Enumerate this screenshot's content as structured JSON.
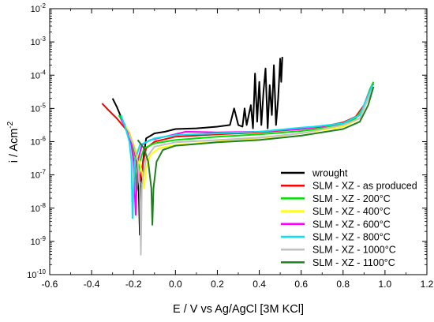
{
  "chart_data": {
    "type": "line",
    "title": "",
    "xlabel": "E / V vs Ag/AgCl [3M KCl]",
    "ylabel_main": "i / Acm",
    "ylabel_sup": "-2",
    "xlim": [
      -0.6,
      1.2
    ],
    "x_ticks": [
      "-0.6",
      "-0.4",
      "-0.2",
      "0.0",
      "0.2",
      "0.4",
      "0.6",
      "0.8",
      "1.0",
      "1.2"
    ],
    "y_scale": "log",
    "y_ticks": [
      {
        "base": "10",
        "exp": "-10"
      },
      {
        "base": "10",
        "exp": "-9"
      },
      {
        "base": "10",
        "exp": "-8"
      },
      {
        "base": "10",
        "exp": "-7"
      },
      {
        "base": "10",
        "exp": "-6"
      },
      {
        "base": "10",
        "exp": "-5"
      },
      {
        "base": "10",
        "exp": "-4"
      },
      {
        "base": "10",
        "exp": "-3"
      },
      {
        "base": "10",
        "exp": "-2"
      }
    ],
    "grid": false,
    "legend_position": "bottom-right",
    "series": [
      {
        "name": "wrought",
        "color": "#000000",
        "ecorr": -0.17,
        "imin_log": -8.8,
        "points": [
          [
            -0.3,
            -4.7
          ],
          [
            -0.28,
            -4.95
          ],
          [
            -0.25,
            -5.4
          ],
          [
            -0.22,
            -5.75
          ],
          [
            -0.2,
            -6.1
          ],
          [
            -0.185,
            -6.6
          ],
          [
            -0.175,
            -7.5
          ],
          [
            -0.17,
            -8.8
          ],
          [
            -0.165,
            -7.5
          ],
          [
            -0.155,
            -6.6
          ],
          [
            -0.14,
            -5.9
          ],
          [
            -0.1,
            -5.75
          ],
          [
            -0.05,
            -5.7
          ],
          [
            0.0,
            -5.62
          ],
          [
            0.1,
            -5.6
          ],
          [
            0.2,
            -5.55
          ],
          [
            0.26,
            -5.5
          ],
          [
            0.28,
            -5.0
          ],
          [
            0.3,
            -5.5
          ],
          [
            0.32,
            -5.55
          ],
          [
            0.33,
            -5.0
          ],
          [
            0.34,
            -5.5
          ],
          [
            0.36,
            -4.9
          ],
          [
            0.37,
            -5.6
          ],
          [
            0.38,
            -3.95
          ],
          [
            0.39,
            -5.4
          ],
          [
            0.4,
            -4.2
          ],
          [
            0.41,
            -5.5
          ],
          [
            0.42,
            -4.5
          ],
          [
            0.43,
            -3.8
          ],
          [
            0.44,
            -5.6
          ],
          [
            0.45,
            -4.3
          ],
          [
            0.46,
            -5.2
          ],
          [
            0.47,
            -3.7
          ],
          [
            0.48,
            -5.5
          ],
          [
            0.49,
            -4.7
          ],
          [
            0.5,
            -3.5
          ],
          [
            0.505,
            -4.2
          ],
          [
            0.51,
            -3.45
          ]
        ]
      },
      {
        "name": "SLM - XZ - as produced",
        "color": "#ff0000",
        "ecorr": -0.17,
        "imin_log": -7.2,
        "points": [
          [
            -0.35,
            -4.85
          ],
          [
            -0.32,
            -5.05
          ],
          [
            -0.28,
            -5.3
          ],
          [
            -0.24,
            -5.6
          ],
          [
            -0.21,
            -5.95
          ],
          [
            -0.19,
            -6.4
          ],
          [
            -0.175,
            -6.9
          ],
          [
            -0.17,
            -7.2
          ],
          [
            -0.16,
            -6.8
          ],
          [
            -0.14,
            -6.2
          ],
          [
            -0.1,
            -6.0
          ],
          [
            0.0,
            -5.85
          ],
          [
            0.2,
            -5.78
          ],
          [
            0.4,
            -5.72
          ],
          [
            0.6,
            -5.62
          ],
          [
            0.7,
            -5.55
          ],
          [
            0.8,
            -5.42
          ],
          [
            0.86,
            -5.25
          ],
          [
            0.9,
            -4.9
          ],
          [
            0.93,
            -4.4
          ],
          [
            0.945,
            -4.25
          ]
        ]
      },
      {
        "name": "SLM - XZ - 200°C",
        "color": "#00e000",
        "ecorr": -0.185,
        "imin_log": -7.5,
        "points": [
          [
            -0.27,
            -5.2
          ],
          [
            -0.24,
            -5.55
          ],
          [
            -0.21,
            -6.0
          ],
          [
            -0.195,
            -6.6
          ],
          [
            -0.185,
            -7.5
          ],
          [
            -0.17,
            -6.6
          ],
          [
            -0.15,
            -6.2
          ],
          [
            -0.1,
            -6.05
          ],
          [
            0.0,
            -5.95
          ],
          [
            0.2,
            -5.85
          ],
          [
            0.4,
            -5.78
          ],
          [
            0.6,
            -5.68
          ],
          [
            0.7,
            -5.6
          ],
          [
            0.8,
            -5.48
          ],
          [
            0.86,
            -5.3
          ],
          [
            0.9,
            -4.95
          ],
          [
            0.93,
            -4.4
          ],
          [
            0.945,
            -4.2
          ]
        ]
      },
      {
        "name": "SLM - XZ - 400°C",
        "color": "#ffff00",
        "ecorr": -0.15,
        "imin_log": -7.4,
        "points": [
          [
            -0.24,
            -5.5
          ],
          [
            -0.21,
            -5.9
          ],
          [
            -0.18,
            -6.4
          ],
          [
            -0.16,
            -6.9
          ],
          [
            -0.15,
            -7.4
          ],
          [
            -0.14,
            -6.8
          ],
          [
            -0.12,
            -6.4
          ],
          [
            -0.08,
            -6.2
          ],
          [
            0.0,
            -6.1
          ],
          [
            0.2,
            -6.0
          ],
          [
            0.4,
            -5.9
          ],
          [
            0.6,
            -5.75
          ],
          [
            0.8,
            -5.55
          ],
          [
            0.88,
            -5.3
          ],
          [
            0.92,
            -4.7
          ],
          [
            0.94,
            -4.3
          ]
        ]
      },
      {
        "name": "SLM - XZ - 600°C",
        "color": "#ff00ff",
        "ecorr": -0.19,
        "imin_log": -8.2,
        "points": [
          [
            -0.26,
            -5.3
          ],
          [
            -0.23,
            -5.7
          ],
          [
            -0.21,
            -6.1
          ],
          [
            -0.2,
            -6.6
          ],
          [
            -0.19,
            -8.2
          ],
          [
            -0.18,
            -6.6
          ],
          [
            -0.16,
            -6.1
          ],
          [
            -0.12,
            -5.95
          ],
          [
            -0.05,
            -5.85
          ],
          [
            0.05,
            -5.7
          ],
          [
            0.2,
            -5.72
          ],
          [
            0.4,
            -5.7
          ],
          [
            0.6,
            -5.62
          ],
          [
            0.8,
            -5.45
          ],
          [
            0.88,
            -5.2
          ],
          [
            0.92,
            -4.6
          ],
          [
            0.94,
            -4.3
          ]
        ]
      },
      {
        "name": "SLM - XZ - 800°C",
        "color": "#00e5ee",
        "ecorr": -0.205,
        "imin_log": -8.3,
        "points": [
          [
            -0.26,
            -5.2
          ],
          [
            -0.24,
            -5.55
          ],
          [
            -0.22,
            -6.0
          ],
          [
            -0.21,
            -6.6
          ],
          [
            -0.205,
            -8.3
          ],
          [
            -0.195,
            -6.6
          ],
          [
            -0.17,
            -6.1
          ],
          [
            -0.1,
            -5.9
          ],
          [
            0.0,
            -5.8
          ],
          [
            0.2,
            -5.75
          ],
          [
            0.4,
            -5.7
          ],
          [
            0.6,
            -5.58
          ],
          [
            0.66,
            -5.55
          ],
          [
            0.8,
            -5.45
          ],
          [
            0.88,
            -5.2
          ],
          [
            0.92,
            -4.6
          ],
          [
            0.94,
            -4.3
          ]
        ]
      },
      {
        "name": "SLM - XZ - 1000°C",
        "color": "#c0c0c0",
        "ecorr": -0.165,
        "imin_log": -9.4,
        "points": [
          [
            -0.22,
            -5.8
          ],
          [
            -0.2,
            -6.1
          ],
          [
            -0.18,
            -6.6
          ],
          [
            -0.17,
            -7.4
          ],
          [
            -0.165,
            -9.4
          ],
          [
            -0.16,
            -7.3
          ],
          [
            -0.14,
            -6.5
          ],
          [
            -0.1,
            -6.15
          ],
          [
            0.0,
            -6.02
          ],
          [
            0.2,
            -5.95
          ],
          [
            0.4,
            -5.88
          ],
          [
            0.6,
            -5.75
          ],
          [
            0.8,
            -5.5
          ],
          [
            0.88,
            -5.3
          ],
          [
            0.92,
            -4.7
          ],
          [
            0.945,
            -4.35
          ]
        ]
      },
      {
        "name": "SLM - XZ - 1100°C",
        "color": "#208020",
        "ecorr": -0.11,
        "imin_log": -8.5,
        "points": [
          [
            -0.18,
            -5.95
          ],
          [
            -0.15,
            -6.2
          ],
          [
            -0.13,
            -6.6
          ],
          [
            -0.115,
            -7.4
          ],
          [
            -0.11,
            -8.5
          ],
          [
            -0.105,
            -7.4
          ],
          [
            -0.09,
            -6.6
          ],
          [
            -0.06,
            -6.25
          ],
          [
            0.0,
            -6.12
          ],
          [
            0.2,
            -6.02
          ],
          [
            0.4,
            -5.95
          ],
          [
            0.6,
            -5.82
          ],
          [
            0.8,
            -5.62
          ],
          [
            0.88,
            -5.4
          ],
          [
            0.92,
            -4.9
          ],
          [
            0.945,
            -4.35
          ]
        ]
      }
    ]
  }
}
